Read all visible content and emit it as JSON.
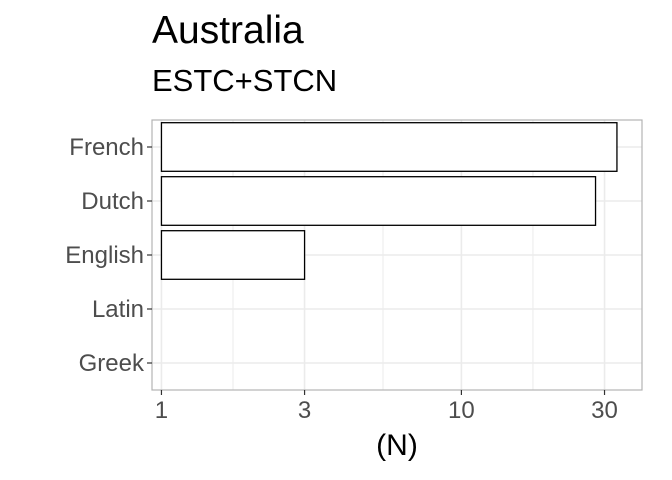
{
  "chart_data": {
    "type": "bar",
    "orientation": "horizontal",
    "title": "Australia",
    "subtitle": "ESTC+STCN",
    "xlabel": "(N)",
    "ylabel": "",
    "x_scale": "log10",
    "xlim": [
      0.93,
      40
    ],
    "x_ticks": [
      1,
      3,
      10,
      30
    ],
    "x_tick_labels": [
      "1",
      "3",
      "10",
      "30"
    ],
    "categories": [
      "French",
      "Dutch",
      "English",
      "Latin",
      "Greek"
    ],
    "values": [
      33,
      28,
      3,
      1,
      1
    ],
    "grid": true,
    "legend": "none",
    "colors": {
      "bar_fill": "#ffffff",
      "bar_stroke": "#000000",
      "grid": "#ebebeb",
      "panel_border": "#b3b3b3",
      "tick_text": "#4d4d4d"
    }
  }
}
